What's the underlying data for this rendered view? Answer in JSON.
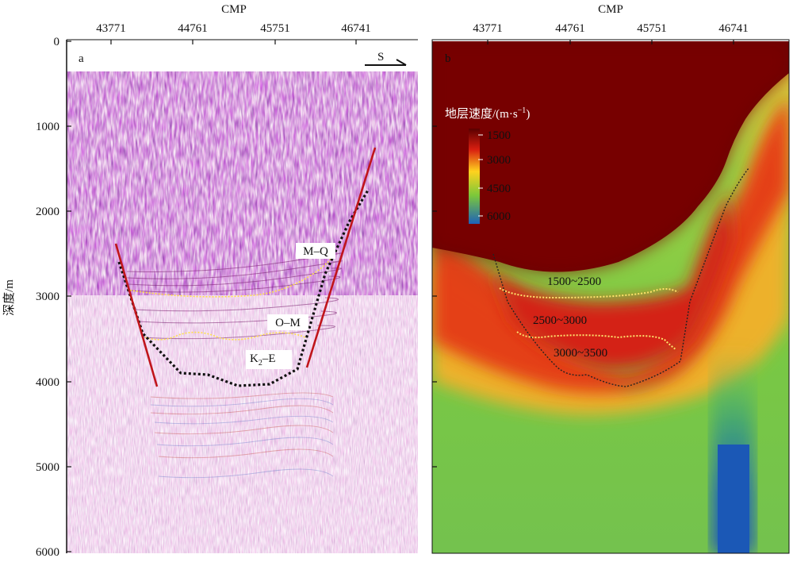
{
  "figure": {
    "shared_axis": {
      "title": "CMP",
      "x_ticks": [
        "43771",
        "44761",
        "45751",
        "46741"
      ],
      "y_title": "深度/m",
      "y_ticks": [
        "0",
        "1000",
        "2000",
        "3000",
        "4000",
        "5000",
        "6000"
      ]
    },
    "panel_a": {
      "letter": "a",
      "direction": "S",
      "units": [
        {
          "label": "M–Q"
        },
        {
          "label": "O–M"
        },
        {
          "label": "K2–E",
          "main": "K",
          "sub": "2",
          "tail": "–E"
        }
      ]
    },
    "panel_b": {
      "letter": "b",
      "colorbar": {
        "title": "地层速度/(m·s",
        "title_sup": "−1",
        "title_close": ")",
        "ticks": [
          "1500",
          "3000",
          "4500",
          "6000"
        ],
        "colors": [
          "#5a0000",
          "#d81e10",
          "#ffd21e",
          "#7cc83a",
          "#1d62b9"
        ]
      },
      "ranges": [
        {
          "label": "1500~2500"
        },
        {
          "label": "2500~3000"
        },
        {
          "label": "3000~3500"
        }
      ]
    }
  }
}
